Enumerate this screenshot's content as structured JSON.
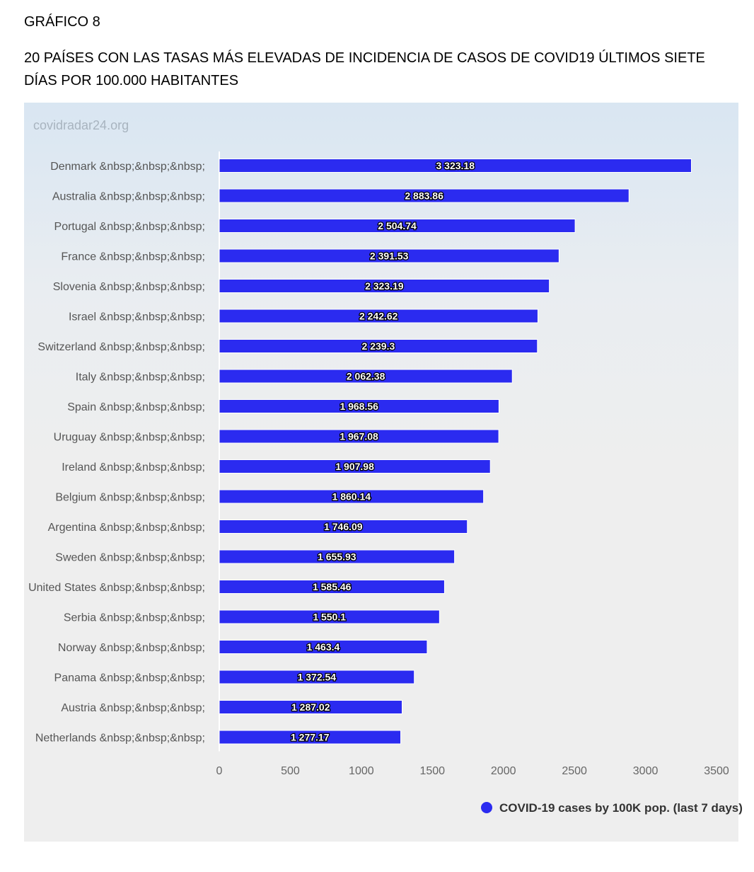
{
  "document": {
    "label": "GRÁFICO 8",
    "title": "20 PAÍSES CON LAS TASAS MÁS ELEVADAS DE INCIDENCIA DE CASOS DE COVID19 ÚLTIMOS SIETE DÍAS POR 100.000 HABITANTES"
  },
  "watermark": "covidradar24.org",
  "chart_data": {
    "type": "bar",
    "orientation": "horizontal",
    "categories": [
      "Denmark &nbsp;&nbsp;&nbsp;",
      "Australia &nbsp;&nbsp;&nbsp;",
      "Portugal &nbsp;&nbsp;&nbsp;",
      "France &nbsp;&nbsp;&nbsp;",
      "Slovenia &nbsp;&nbsp;&nbsp;",
      "Israel &nbsp;&nbsp;&nbsp;",
      "Switzerland &nbsp;&nbsp;&nbsp;",
      "Italy &nbsp;&nbsp;&nbsp;",
      "Spain &nbsp;&nbsp;&nbsp;",
      "Uruguay &nbsp;&nbsp;&nbsp;",
      "Ireland &nbsp;&nbsp;&nbsp;",
      "Belgium &nbsp;&nbsp;&nbsp;",
      "Argentina &nbsp;&nbsp;&nbsp;",
      "Sweden &nbsp;&nbsp;&nbsp;",
      "United States &nbsp;&nbsp;&nbsp;",
      "Serbia &nbsp;&nbsp;&nbsp;",
      "Norway &nbsp;&nbsp;&nbsp;",
      "Panama &nbsp;&nbsp;&nbsp;",
      "Austria &nbsp;&nbsp;&nbsp;",
      "Netherlands &nbsp;&nbsp;&nbsp;"
    ],
    "series": [
      {
        "name": "COVID-19 cases by 100K pop. (last 7 days)",
        "color": "#2b2bf0",
        "values": [
          3323.18,
          2883.86,
          2504.74,
          2391.53,
          2323.19,
          2242.62,
          2239.3,
          2062.38,
          1968.56,
          1967.08,
          1907.98,
          1860.14,
          1746.09,
          1655.93,
          1585.46,
          1550.1,
          1463.4,
          1372.54,
          1287.02,
          1277.17
        ],
        "labels": [
          "3 323.18",
          "2 883.86",
          "2 504.74",
          "2 391.53",
          "2 323.19",
          "2 242.62",
          "2 239.3",
          "2 062.38",
          "1 968.56",
          "1 967.08",
          "1 907.98",
          "1 860.14",
          "1 746.09",
          "1 655.93",
          "1 585.46",
          "1 550.1",
          "1 463.4",
          "1 372.54",
          "1 287.02",
          "1 277.17"
        ]
      }
    ],
    "xlim": [
      0,
      3500
    ],
    "xticks": [
      "0",
      "500",
      "1000",
      "1500",
      "2000",
      "2500",
      "3000",
      "3500"
    ],
    "grid": false,
    "legend_position": "bottom-right"
  }
}
